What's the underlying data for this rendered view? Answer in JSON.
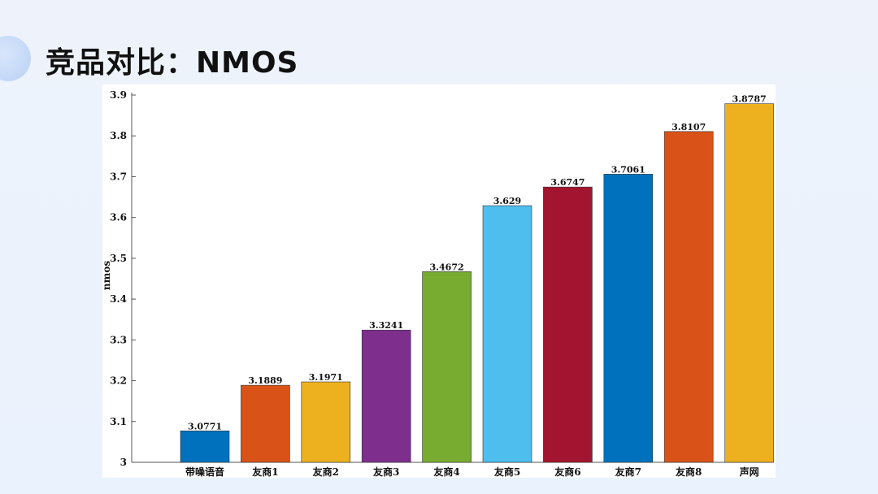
{
  "page": {
    "title": "竞品对比：NMOS"
  },
  "chart_data": {
    "type": "bar",
    "title": "",
    "xlabel": "",
    "ylabel": "nmos",
    "ylim": [
      3,
      3.9
    ],
    "yticks": [
      "3",
      "3.1",
      "3.2",
      "3.3",
      "3.4",
      "3.5",
      "3.6",
      "3.7",
      "3.8",
      "3.9"
    ],
    "grid": false,
    "categories": [
      "带噪语音",
      "友商1",
      "友商2",
      "友商3",
      "友商4",
      "友商5",
      "友商6",
      "友商7",
      "友商8",
      "声网"
    ],
    "values": [
      3.0771,
      3.1889,
      3.1971,
      3.3241,
      3.4672,
      3.629,
      3.6747,
      3.7061,
      3.8107,
      3.8787
    ],
    "value_labels": [
      "3.0771",
      "3.1889",
      "3.1971",
      "3.3241",
      "3.4672",
      "3.629",
      "3.6747",
      "3.7061",
      "3.8107",
      "3.8787"
    ],
    "colors": [
      "#0072bd",
      "#d95319",
      "#edb120",
      "#7e2f8e",
      "#77ac30",
      "#4dbeee",
      "#a2142f",
      "#0072bd",
      "#d95319",
      "#edb120"
    ]
  }
}
